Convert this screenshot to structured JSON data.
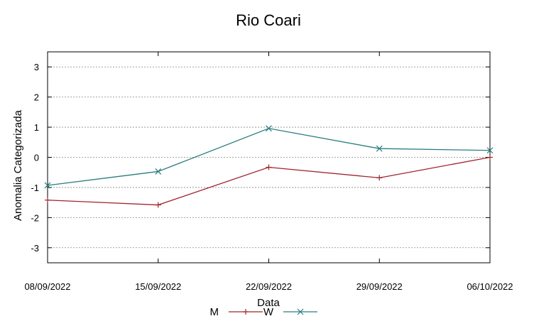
{
  "chart_data": {
    "type": "line",
    "title": "Rio Coari",
    "xlabel": "Data",
    "ylabel": "Anomalia Categorizada",
    "categories": [
      "08/09/2022",
      "15/09/2022",
      "22/09/2022",
      "29/09/2022",
      "06/10/2022"
    ],
    "ylim": [
      -3.5,
      3.5
    ],
    "yticks": [
      "-3",
      "-2",
      "-1",
      "0",
      "1",
      "2",
      "3"
    ],
    "grid": "horizontal dotted",
    "legend_position": "bottom",
    "series": [
      {
        "name": "M",
        "values": [
          -1.42,
          -1.58,
          -0.33,
          -0.68,
          0.0
        ],
        "color": "#a0242c",
        "marker": "plus"
      },
      {
        "name": "W",
        "values": [
          -0.93,
          -0.47,
          0.96,
          0.29,
          0.23
        ],
        "color": "#2a7d7f",
        "marker": "x"
      }
    ]
  }
}
